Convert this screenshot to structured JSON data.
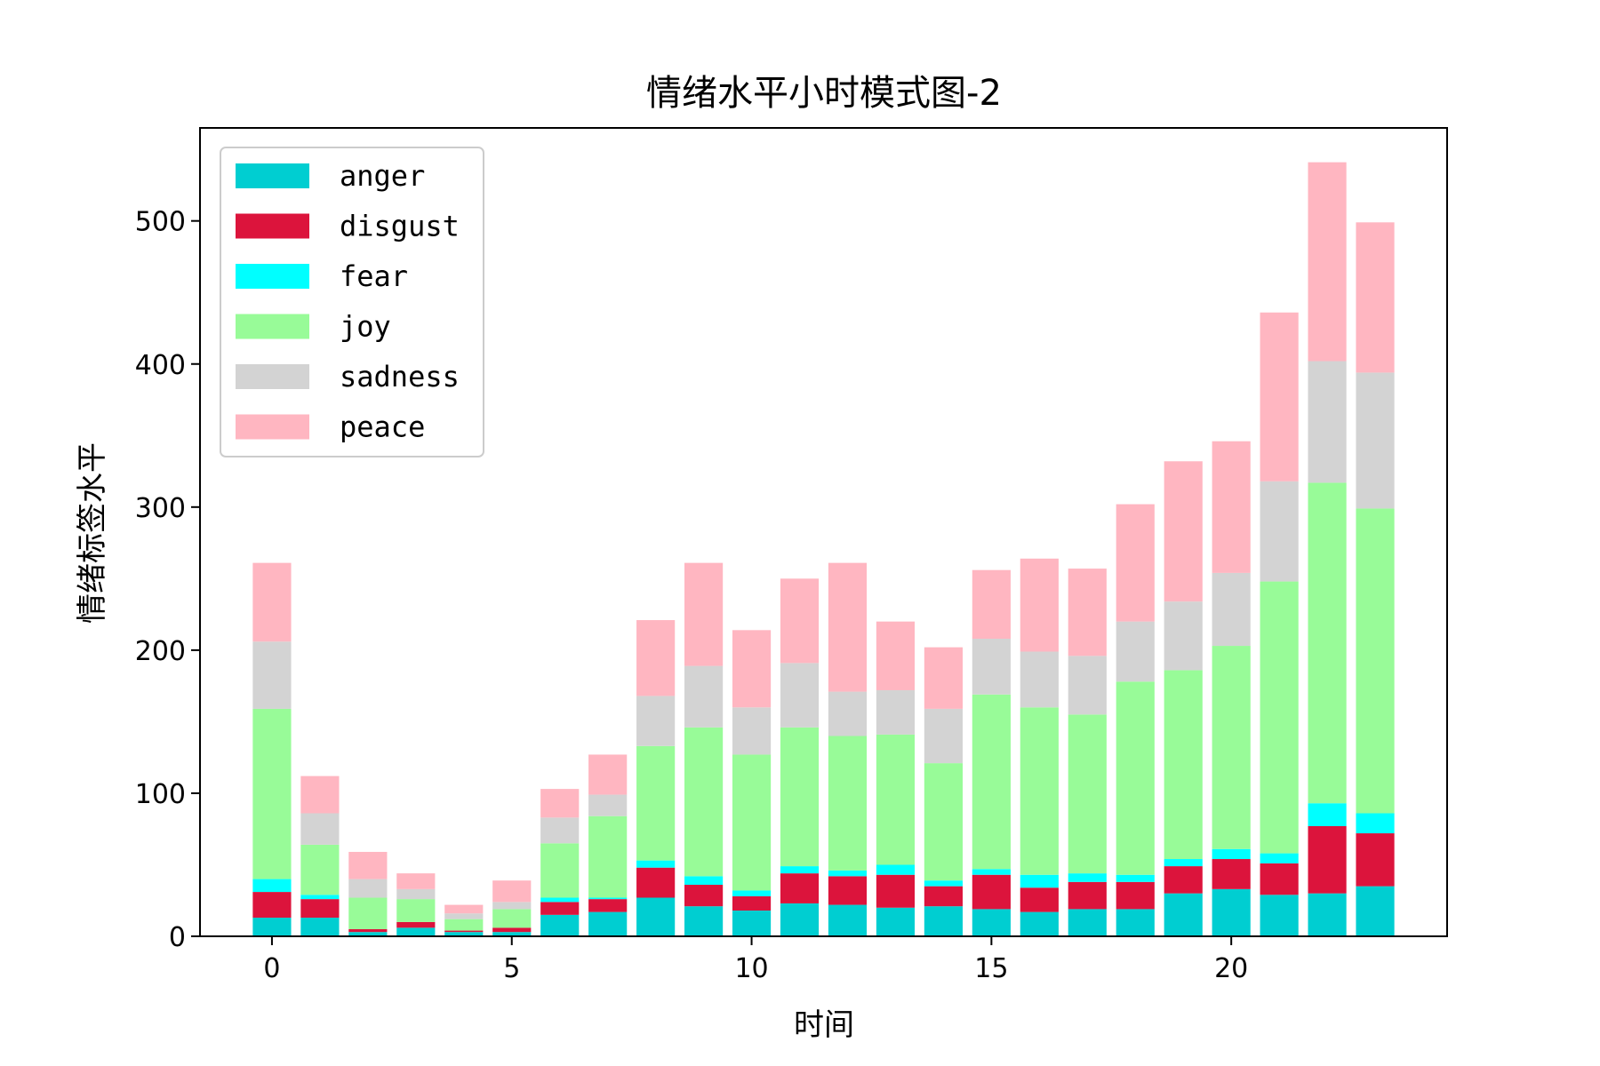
{
  "chart_data": {
    "type": "bar",
    "stacked": true,
    "title": "情绪水平小时模式图-2",
    "xlabel": "时间",
    "ylabel": "情绪标签水平",
    "xlim": [
      -1.5,
      24.5
    ],
    "ylim": [
      0,
      565
    ],
    "x_ticks": [
      0,
      5,
      10,
      15,
      20
    ],
    "y_ticks": [
      0,
      100,
      200,
      300,
      400,
      500
    ],
    "grid": false,
    "legend_position": "top-left",
    "x": [
      0,
      1,
      2,
      3,
      4,
      5,
      6,
      7,
      8,
      9,
      10,
      11,
      12,
      13,
      14,
      15,
      16,
      17,
      18,
      19,
      20,
      21,
      22,
      23
    ],
    "series": [
      {
        "name": "anger",
        "color": "#00CED1",
        "values": [
          13,
          13,
          3,
          6,
          3,
          3,
          15,
          17,
          27,
          21,
          18,
          23,
          22,
          20,
          21,
          19,
          17,
          19,
          19,
          30,
          33,
          29,
          30,
          35
        ]
      },
      {
        "name": "disgust",
        "color": "#DC143C",
        "values": [
          18,
          13,
          2,
          4,
          1,
          3,
          9,
          9,
          21,
          15,
          10,
          21,
          20,
          23,
          14,
          24,
          17,
          19,
          19,
          19,
          21,
          22,
          47,
          37
        ]
      },
      {
        "name": "fear",
        "color": "#00FFFF",
        "values": [
          9,
          3,
          0,
          0,
          0,
          0,
          3,
          1,
          5,
          6,
          4,
          5,
          4,
          7,
          4,
          4,
          9,
          6,
          5,
          5,
          7,
          7,
          16,
          14
        ]
      },
      {
        "name": "joy",
        "color": "#98FB98",
        "values": [
          119,
          35,
          22,
          16,
          8,
          13,
          38,
          57,
          80,
          104,
          95,
          97,
          94,
          91,
          82,
          122,
          117,
          111,
          135,
          132,
          142,
          190,
          224,
          213
        ]
      },
      {
        "name": "sadness",
        "color": "#D3D3D3",
        "values": [
          47,
          22,
          13,
          7,
          4,
          5,
          18,
          15,
          35,
          43,
          33,
          45,
          31,
          31,
          38,
          39,
          39,
          41,
          42,
          48,
          51,
          70,
          85,
          95
        ]
      },
      {
        "name": "peace",
        "color": "#FFB6C1",
        "values": [
          55,
          26,
          19,
          11,
          6,
          15,
          20,
          28,
          53,
          72,
          54,
          59,
          90,
          48,
          43,
          48,
          65,
          61,
          82,
          98,
          92,
          118,
          139,
          105
        ]
      }
    ]
  }
}
